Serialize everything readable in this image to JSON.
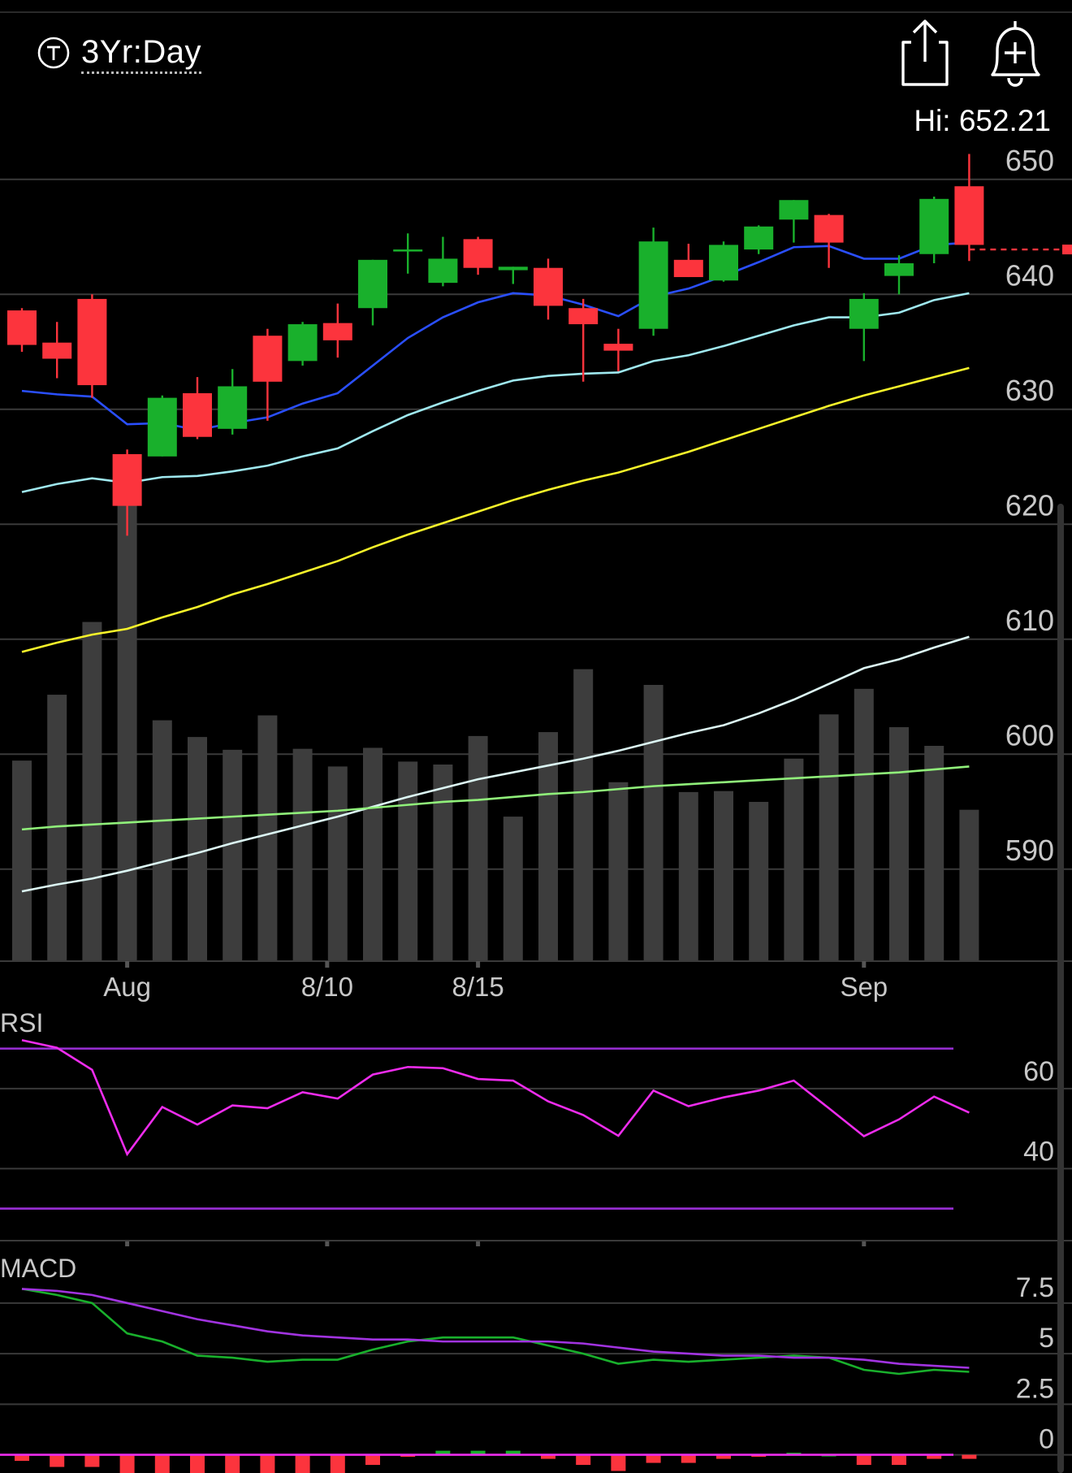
{
  "header": {
    "range_label": "3Yr:Day",
    "range_icon": "tradingview-t-icon",
    "share_icon": "share-icon",
    "alert_icon": "add-alert-bell-icon",
    "hi_label": "Hi: 652.21"
  },
  "chart_data": [
    {
      "type": "candlestick",
      "title": "",
      "xlabel": "",
      "ylabel": "",
      "ylim": [
        582,
        655
      ],
      "yticks": [
        650,
        640,
        630,
        620,
        610,
        600,
        590
      ],
      "grid": true,
      "xticks": [
        {
          "index": 3,
          "label": "Aug"
        },
        {
          "index": 8.7,
          "label": "8/10"
        },
        {
          "index": 13,
          "label": "8/15"
        },
        {
          "index": 24,
          "label": "Sep"
        }
      ],
      "last_price": 643.9,
      "candles": [
        {
          "o": 638.6,
          "h": 638.8,
          "l": 635.0,
          "c": 635.6
        },
        {
          "o": 635.8,
          "h": 637.6,
          "l": 632.7,
          "c": 634.4
        },
        {
          "o": 639.6,
          "h": 640.0,
          "l": 631.0,
          "c": 632.1
        },
        {
          "o": 626.1,
          "h": 626.5,
          "l": 619.0,
          "c": 621.6
        },
        {
          "o": 625.9,
          "h": 631.2,
          "l": 625.9,
          "c": 631.0
        },
        {
          "o": 631.4,
          "h": 632.8,
          "l": 627.4,
          "c": 627.6
        },
        {
          "o": 628.3,
          "h": 633.5,
          "l": 627.8,
          "c": 632.0
        },
        {
          "o": 636.4,
          "h": 637.0,
          "l": 629.0,
          "c": 632.4
        },
        {
          "o": 634.2,
          "h": 637.6,
          "l": 633.8,
          "c": 637.4
        },
        {
          "o": 637.5,
          "h": 639.2,
          "l": 634.5,
          "c": 636.0
        },
        {
          "o": 638.8,
          "h": 643.0,
          "l": 637.3,
          "c": 643.0
        },
        {
          "o": 643.9,
          "h": 645.3,
          "l": 641.8,
          "c": 643.9
        },
        {
          "o": 641.0,
          "h": 645.0,
          "l": 640.7,
          "c": 643.1
        },
        {
          "o": 644.8,
          "h": 645.0,
          "l": 641.7,
          "c": 642.3
        },
        {
          "o": 642.1,
          "h": 642.4,
          "l": 640.9,
          "c": 642.4
        },
        {
          "o": 642.3,
          "h": 643.1,
          "l": 637.8,
          "c": 639.0
        },
        {
          "o": 638.8,
          "h": 639.6,
          "l": 632.4,
          "c": 637.4
        },
        {
          "o": 635.7,
          "h": 637.0,
          "l": 633.3,
          "c": 635.1
        },
        {
          "o": 637.0,
          "h": 645.8,
          "l": 636.4,
          "c": 644.6
        },
        {
          "o": 643.0,
          "h": 644.4,
          "l": 641.5,
          "c": 641.5
        },
        {
          "o": 641.2,
          "h": 644.6,
          "l": 641.1,
          "c": 644.3
        },
        {
          "o": 643.9,
          "h": 646.0,
          "l": 643.5,
          "c": 645.9
        },
        {
          "o": 646.5,
          "h": 648.2,
          "l": 644.5,
          "c": 648.2
        },
        {
          "o": 646.9,
          "h": 647.0,
          "l": 642.3,
          "c": 644.5
        },
        {
          "o": 637.0,
          "h": 640.1,
          "l": 634.2,
          "c": 639.6
        },
        {
          "o": 641.6,
          "h": 643.4,
          "l": 640.0,
          "c": 642.7
        },
        {
          "o": 643.5,
          "h": 648.5,
          "l": 642.7,
          "c": 648.3
        },
        {
          "o": 649.4,
          "h": 652.21,
          "l": 642.9,
          "c": 644.3
        }
      ],
      "moving_averages": [
        {
          "color": "#2a4fff",
          "values": [
            631.6,
            631.3,
            631.1,
            628.7,
            628.8,
            628.2,
            628.8,
            629.3,
            630.5,
            631.4,
            633.8,
            636.2,
            638.0,
            639.3,
            640.1,
            639.9,
            639.1,
            638.1,
            639.8,
            640.5,
            641.6,
            642.8,
            644.1,
            644.2,
            643.1,
            643.1,
            644.3,
            644.5
          ]
        },
        {
          "color": "#9fe8ef",
          "values": [
            622.8,
            623.5,
            624.0,
            623.6,
            624.1,
            624.2,
            624.6,
            625.1,
            625.9,
            626.6,
            628.1,
            629.5,
            630.6,
            631.6,
            632.5,
            632.9,
            633.1,
            633.2,
            634.2,
            634.7,
            635.5,
            636.4,
            637.3,
            638.0,
            638.0,
            638.4,
            639.5,
            640.1
          ]
        },
        {
          "color": "#f7f42a",
          "values": [
            608.9,
            609.7,
            610.4,
            610.9,
            611.9,
            612.8,
            613.9,
            614.8,
            615.8,
            616.8,
            618.0,
            619.1,
            620.1,
            621.1,
            622.1,
            623.0,
            623.8,
            624.5,
            625.4,
            626.3,
            627.3,
            628.3,
            629.3,
            630.3,
            631.2,
            632.0,
            632.8,
            633.6
          ]
        }
      ]
    },
    {
      "type": "bar",
      "name_hidden": true,
      "values": [
        204,
        271,
        345,
        468,
        245,
        228,
        215,
        250,
        216,
        198,
        217,
        203,
        200,
        229,
        147,
        233,
        297,
        182,
        281,
        172,
        173,
        162,
        206,
        251,
        277,
        238,
        219,
        154
      ],
      "volume_averages": [
        {
          "color": "#dcf6f4",
          "values": [
            71,
            78,
            84,
            92,
            101,
            110,
            120,
            129,
            138,
            147,
            157,
            167,
            176,
            185,
            192,
            199,
            206,
            214,
            223,
            232,
            240,
            252,
            266,
            282,
            298,
            307,
            319,
            330
          ]
        },
        {
          "color": "#90f07a",
          "values": [
            134,
            137,
            139,
            141,
            143,
            145,
            147,
            149,
            151,
            153,
            156,
            159,
            162,
            164,
            167,
            170,
            172,
            175,
            178,
            180,
            182,
            184,
            186,
            188,
            190,
            192,
            195,
            198
          ]
        }
      ]
    },
    {
      "type": "line",
      "label": "RSI",
      "ylim": [
        22,
        75
      ],
      "yticks": [
        60,
        40
      ],
      "bands": [
        70,
        30
      ],
      "band_color": "#9a2fd6",
      "series": [
        {
          "color": "#ee2ced",
          "values": [
            72.1,
            70.2,
            64.7,
            43.6,
            55.4,
            51.0,
            55.8,
            55.1,
            59.1,
            57.5,
            63.5,
            65.4,
            65.1,
            62.4,
            62.0,
            56.8,
            53.4,
            48.2,
            59.5,
            55.6,
            57.8,
            59.5,
            62.0,
            55.1,
            48.1,
            52.3,
            58.0,
            54.0
          ]
        }
      ]
    },
    {
      "type": "bar",
      "label": "MACD",
      "ylim": [
        -0.9,
        9.3
      ],
      "yticks": [
        7.5,
        5,
        2.5,
        0
      ],
      "series": [
        {
          "color": "#19b02c",
          "values": [
            8.2,
            7.9,
            7.5,
            6.0,
            5.6,
            4.9,
            4.8,
            4.6,
            4.7,
            4.7,
            5.2,
            5.6,
            5.8,
            5.8,
            5.8,
            5.4,
            5.0,
            4.5,
            4.7,
            4.6,
            4.7,
            4.8,
            4.9,
            4.8,
            4.2,
            4.0,
            4.2,
            4.1
          ]
        },
        {
          "color": "#a133e0",
          "values": [
            8.2,
            8.1,
            7.9,
            7.5,
            7.1,
            6.7,
            6.4,
            6.1,
            5.9,
            5.8,
            5.7,
            5.7,
            5.6,
            5.6,
            5.6,
            5.6,
            5.5,
            5.3,
            5.1,
            5.0,
            4.9,
            4.9,
            4.8,
            4.8,
            4.7,
            4.5,
            4.4,
            4.3
          ]
        }
      ],
      "histogram": [
        -0.3,
        -0.6,
        -0.6,
        -1.6,
        -1.6,
        -1.8,
        -1.6,
        -1.5,
        -1.2,
        -1.1,
        -0.5,
        -0.1,
        0.2,
        0.2,
        0.2,
        -0.2,
        -0.5,
        -0.8,
        -0.4,
        -0.4,
        -0.2,
        -0.1,
        0.1,
        0.0,
        -0.5,
        -0.5,
        -0.2,
        -0.2
      ]
    }
  ]
}
